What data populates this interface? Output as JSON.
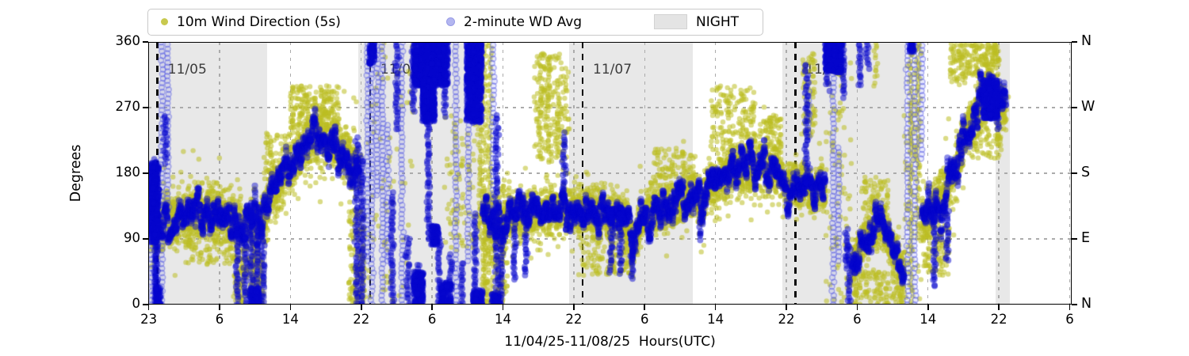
{
  "chart_data": {
    "type": "scatter",
    "title": "",
    "xlabel": "11/04/25-11/08/25  Hours(UTC)",
    "ylabel": "Degrees",
    "ylim": [
      0,
      360
    ],
    "yticks": [
      0,
      90,
      180,
      270,
      360
    ],
    "compass_labels_bottom_to_top": [
      "N",
      "E",
      "S",
      "W",
      "N"
    ],
    "grid": "dashed",
    "legend": [
      {
        "label": "10m Wind Direction (5s)",
        "marker": "olive-dot",
        "color": "#bcbd22"
      },
      {
        "label": "2-minute WD Avg",
        "marker": "lightblue-dot",
        "color": "#0000cd"
      },
      {
        "label": "NIGHT",
        "marker": "gray-patch",
        "color": "#e8e8e8"
      }
    ],
    "x_axis": {
      "hours_origin": "11/04 23:00 UTC",
      "tick_t": [
        0,
        8,
        16,
        24,
        32,
        40,
        48,
        56,
        64,
        72,
        80,
        88,
        96,
        104
      ],
      "tick_labels": [
        "23",
        "6",
        "14",
        "22",
        "6",
        "14",
        "22",
        "6",
        "14",
        "22",
        "6",
        "14",
        "22",
        "6"
      ],
      "t_min": -0.1,
      "t_max": 104.3
    },
    "day_lines": [
      {
        "t": 1,
        "label": "11/05"
      },
      {
        "t": 25,
        "label": "11/06"
      },
      {
        "t": 49,
        "label": "11/07"
      },
      {
        "t": 73,
        "label": "11/08"
      }
    ],
    "night_bands_t": [
      [
        -0.1,
        13.35
      ],
      [
        23.7,
        37.65
      ],
      [
        47.45,
        61.45
      ],
      [
        71.55,
        85.5
      ],
      [
        95.6,
        97.2
      ]
    ],
    "series_styles": {
      "wd_5s": {
        "color": "#bcbd22",
        "alpha": 0.55,
        "radius_px": 3.2
      },
      "wd_2min": {
        "color": "#0505cd",
        "alpha": 0.42,
        "radius_px": 4.1
      },
      "wd_2min_sparse_ring": {
        "stroke": "rgba(70,75,225,0.40)",
        "fill": "rgba(130,133,240,0.18)"
      }
    },
    "band_segments": [
      {
        "ys": 40,
        "bs": 30,
        "pts": [
          [
            0,
            135
          ],
          [
            0.5,
            125
          ],
          [
            1.1,
            110
          ]
        ]
      },
      {
        "ys": 30,
        "bs": 13,
        "pts": [
          [
            1.3,
            110
          ],
          [
            2,
            118
          ],
          [
            3,
            116
          ],
          [
            4,
            122
          ],
          [
            5,
            124
          ],
          [
            6,
            127
          ],
          [
            7,
            130
          ],
          [
            8,
            124
          ],
          [
            9,
            120
          ],
          [
            9.8,
            112
          ],
          [
            10.6,
            108
          ],
          [
            11.4,
            104
          ],
          [
            12.2,
            108
          ],
          [
            13,
            118
          ],
          [
            13.8,
            152
          ],
          [
            14.6,
            163
          ],
          [
            15.4,
            178
          ],
          [
            16.2,
            196
          ],
          [
            17,
            208
          ],
          [
            17.8,
            216
          ],
          [
            18.6,
            224
          ],
          [
            19.4,
            230
          ],
          [
            20.2,
            224
          ],
          [
            21,
            218
          ],
          [
            21.8,
            212
          ],
          [
            22.6,
            202
          ],
          [
            23.2,
            192
          ],
          [
            23.8,
            182
          ]
        ]
      },
      {
        "ys": 28,
        "bs": 14,
        "pts": [
          [
            37.7,
            128
          ],
          [
            38.4,
            120
          ],
          [
            39.2,
            112
          ],
          [
            40,
            118
          ],
          [
            41,
            126
          ],
          [
            42,
            120
          ],
          [
            43,
            128
          ],
          [
            44,
            122
          ],
          [
            45,
            130
          ],
          [
            46,
            126
          ],
          [
            47,
            132
          ],
          [
            48,
            126
          ],
          [
            49,
            130
          ],
          [
            50,
            134
          ],
          [
            51,
            128
          ],
          [
            52,
            124
          ],
          [
            53,
            120
          ],
          [
            54,
            116
          ],
          [
            54.6,
            78
          ],
          [
            55.2,
            98
          ],
          [
            56,
            124
          ],
          [
            57,
            130
          ],
          [
            58,
            128
          ],
          [
            59,
            134
          ],
          [
            60,
            140
          ],
          [
            61,
            146
          ],
          [
            61.8,
            152
          ],
          [
            62.4,
            128
          ],
          [
            63,
            158
          ],
          [
            64,
            166
          ],
          [
            65,
            176
          ],
          [
            66,
            184
          ],
          [
            66.8,
            178
          ],
          [
            67.6,
            190
          ],
          [
            68.4,
            182
          ],
          [
            69.2,
            194
          ],
          [
            70,
            180
          ],
          [
            70.8,
            188
          ],
          [
            71.6,
            170
          ]
        ]
      },
      {
        "ys": 26,
        "bs": 14,
        "pts": [
          [
            71.6,
            170
          ],
          [
            72.2,
            160
          ],
          [
            72.8,
            172
          ],
          [
            73.4,
            162
          ],
          [
            74,
            170
          ],
          [
            74.6,
            158
          ],
          [
            75.2,
            150
          ],
          [
            75.8,
            160
          ],
          [
            76.4,
            150
          ]
        ]
      },
      {
        "ys": 24,
        "bs": 13,
        "pts": [
          [
            79.4,
            55
          ],
          [
            80.2,
            72
          ],
          [
            81,
            90
          ],
          [
            81.8,
            102
          ],
          [
            82.4,
            108
          ],
          [
            83,
            100
          ],
          [
            83.6,
            88
          ],
          [
            84.2,
            72
          ],
          [
            84.8,
            58
          ],
          [
            85.3,
            42
          ]
        ]
      },
      {
        "ys": 28,
        "bs": 16,
        "pts": [
          [
            87.3,
            112
          ],
          [
            88,
            126
          ],
          [
            88.7,
            138
          ],
          [
            89.4,
            150
          ],
          [
            90.1,
            162
          ],
          [
            90.8,
            178
          ],
          [
            91.5,
            200
          ],
          [
            92.2,
            228
          ],
          [
            92.9,
            250
          ],
          [
            93.6,
            266
          ],
          [
            94.3,
            282
          ],
          [
            95,
            292
          ],
          [
            95.6,
            286
          ],
          [
            96.8,
            268
          ]
        ]
      }
    ],
    "columns": [
      [
        0.35,
        0,
        95,
        "L"
      ],
      [
        0.75,
        0,
        200,
        "B"
      ],
      [
        0.95,
        0,
        120,
        "B"
      ],
      [
        1.5,
        0,
        360,
        "L"
      ],
      [
        1.9,
        195,
        260,
        "B"
      ],
      [
        2.15,
        90,
        360,
        "L"
      ],
      [
        10.0,
        0,
        120,
        "B"
      ],
      [
        10.5,
        0,
        90,
        "Y"
      ],
      [
        10.9,
        0,
        130,
        "B"
      ],
      [
        11.6,
        0,
        140,
        "B"
      ],
      [
        11.8,
        0,
        80,
        "Y"
      ],
      [
        12.3,
        0,
        120,
        "B"
      ],
      [
        12.6,
        0,
        70,
        "Y"
      ],
      [
        12.9,
        0,
        100,
        "B"
      ],
      [
        23.5,
        0,
        230,
        "B"
      ],
      [
        24.1,
        0,
        205,
        "B"
      ],
      [
        24.7,
        60,
        360,
        "L"
      ],
      [
        25.2,
        0,
        360,
        "L"
      ],
      [
        25.8,
        150,
        360,
        "L"
      ],
      [
        26.4,
        0,
        360,
        "L"
      ],
      [
        27,
        60,
        250,
        "L"
      ],
      [
        27.5,
        0,
        155,
        "B"
      ],
      [
        28,
        240,
        360,
        "B"
      ],
      [
        28.6,
        0,
        360,
        "L"
      ],
      [
        29.3,
        0,
        95,
        "B"
      ],
      [
        29.9,
        265,
        360,
        "B"
      ],
      [
        30.4,
        0,
        55,
        "B"
      ],
      [
        31,
        250,
        360,
        "B"
      ],
      [
        31.6,
        90,
        360,
        "B"
      ],
      [
        32.2,
        255,
        360,
        "B"
      ],
      [
        32.8,
        0,
        105,
        "B"
      ],
      [
        33.4,
        260,
        360,
        "B"
      ],
      [
        34.1,
        0,
        70,
        "B"
      ],
      [
        34.7,
        0,
        360,
        "L"
      ],
      [
        35.4,
        0,
        60,
        "B"
      ],
      [
        36.1,
        60,
        360,
        "L"
      ],
      [
        36.6,
        250,
        360,
        "B"
      ],
      [
        36.9,
        0,
        125,
        "B"
      ],
      [
        37.4,
        90,
        360,
        "Y"
      ],
      [
        37.9,
        0,
        360,
        "Y"
      ],
      [
        38.5,
        60,
        360,
        "Y"
      ],
      [
        38.9,
        120,
        360,
        "L"
      ],
      [
        39.3,
        0,
        260,
        "B"
      ],
      [
        39.8,
        0,
        90,
        "B"
      ],
      [
        41.3,
        35,
        110,
        "B"
      ],
      [
        42.6,
        40,
        115,
        "B"
      ],
      [
        44.2,
        200,
        345,
        "Y"
      ],
      [
        45.1,
        210,
        330,
        "Y"
      ],
      [
        46.2,
        200,
        310,
        "Y"
      ],
      [
        46.9,
        145,
        235,
        "B"
      ],
      [
        52.2,
        45,
        125,
        "B"
      ],
      [
        53.3,
        42,
        125,
        "B"
      ],
      [
        54.6,
        35,
        105,
        "B"
      ],
      [
        62.3,
        90,
        140,
        "B"
      ],
      [
        74.3,
        165,
        330,
        "B"
      ],
      [
        74.55,
        230,
        295,
        "L"
      ],
      [
        76.7,
        295,
        360,
        "B"
      ],
      [
        77.3,
        0,
        360,
        "L"
      ],
      [
        77.9,
        60,
        215,
        "L"
      ],
      [
        78.4,
        285,
        360,
        "B"
      ],
      [
        78.8,
        55,
        105,
        "B"
      ],
      [
        79.1,
        0,
        85,
        "B"
      ],
      [
        80.3,
        300,
        360,
        "B"
      ],
      [
        81.1,
        325,
        360,
        "B"
      ],
      [
        82.1,
        300,
        360,
        "Y"
      ],
      [
        85.7,
        0,
        360,
        "L"
      ],
      [
        86.1,
        0,
        360,
        "Y"
      ],
      [
        86.5,
        0,
        360,
        "L"
      ],
      [
        86.9,
        90,
        360,
        "Y"
      ],
      [
        87.3,
        200,
        360,
        "L"
      ],
      [
        88.7,
        25,
        120,
        "B"
      ],
      [
        90.2,
        60,
        130,
        "B"
      ],
      [
        94.7,
        300,
        360,
        "Y"
      ],
      [
        95.4,
        330,
        360,
        "Y"
      ],
      [
        95.9,
        240,
        300,
        "B"
      ]
    ],
    "blobs": [
      [
        0.15,
        1.15,
        85,
        195
      ],
      [
        0.8,
        1.35,
        0,
        25
      ],
      [
        11.4,
        12.5,
        0,
        22
      ],
      [
        24.9,
        25.5,
        330,
        360
      ],
      [
        29.9,
        33.8,
        300,
        360
      ],
      [
        30.9,
        32.3,
        250,
        310
      ],
      [
        31.9,
        32.7,
        82,
        108
      ],
      [
        29.9,
        31,
        0,
        45
      ],
      [
        33,
        34.1,
        0,
        30
      ],
      [
        35.9,
        37.6,
        250,
        360
      ],
      [
        36.6,
        37.7,
        0,
        20
      ],
      [
        38.7,
        39.6,
        0,
        15
      ],
      [
        76.4,
        78.3,
        318,
        360
      ],
      [
        85.9,
        86.4,
        345,
        360
      ],
      [
        94.2,
        95.9,
        255,
        308
      ]
    ],
    "clouds": [
      [
        4,
        10,
        55,
        100,
        90
      ],
      [
        9.5,
        13,
        0,
        65,
        110
      ],
      [
        13,
        16,
        165,
        235,
        90
      ],
      [
        16,
        21.5,
        235,
        300,
        210
      ],
      [
        22.6,
        24.4,
        0,
        130,
        130
      ],
      [
        24.6,
        30.2,
        0,
        360,
        70
      ],
      [
        33.4,
        37.6,
        70,
        260,
        90
      ],
      [
        37.7,
        40.5,
        0,
        100,
        130
      ],
      [
        43.5,
        47.5,
        195,
        345,
        160
      ],
      [
        48.5,
        54.5,
        40,
        115,
        150
      ],
      [
        57,
        61.5,
        160,
        215,
        90
      ],
      [
        63.5,
        68.5,
        205,
        300,
        170
      ],
      [
        69,
        71.5,
        200,
        260,
        80
      ],
      [
        73.8,
        75.3,
        230,
        345,
        70
      ],
      [
        76.4,
        79.4,
        0,
        360,
        80
      ],
      [
        79.6,
        85.2,
        0,
        45,
        140
      ],
      [
        80.5,
        83.5,
        125,
        175,
        70
      ],
      [
        85.3,
        87.3,
        0,
        360,
        60
      ],
      [
        87.5,
        90.5,
        40,
        110,
        90
      ],
      [
        90.5,
        96,
        300,
        358,
        200
      ],
      [
        92.5,
        96.3,
        200,
        250,
        80
      ]
    ]
  }
}
